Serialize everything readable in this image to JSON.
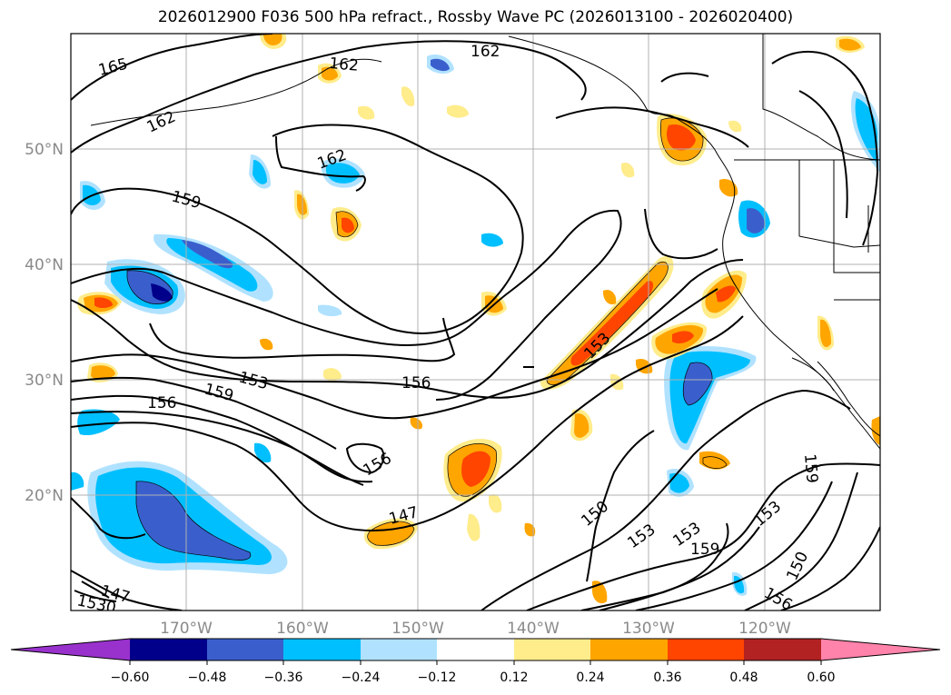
{
  "title": "2026012900 F036 500 hPa refract., Rossby Wave PC (2026013100 - 2026020400)",
  "map": {
    "lon_range": [
      -180,
      -110
    ],
    "lat_range": [
      10,
      60
    ],
    "lon_ticks": [
      "170°W",
      "160°W",
      "150°W",
      "140°W",
      "130°W",
      "120°W"
    ],
    "lat_ticks": [
      "50°N",
      "40°N",
      "30°N",
      "20°N"
    ],
    "grid": true
  },
  "contour_labels": [
    {
      "text": "165"
    },
    {
      "text": "162"
    },
    {
      "text": "162"
    },
    {
      "text": "162"
    },
    {
      "text": "162"
    },
    {
      "text": "159"
    },
    {
      "text": "159"
    },
    {
      "text": "153"
    },
    {
      "text": "156"
    },
    {
      "text": "156"
    },
    {
      "text": "156"
    },
    {
      "text": "153"
    },
    {
      "text": "147"
    },
    {
      "text": "147"
    },
    {
      "text": "1530"
    },
    {
      "text": "150"
    },
    {
      "text": "153"
    },
    {
      "text": "153"
    },
    {
      "text": "159"
    },
    {
      "text": "153"
    },
    {
      "text": "150"
    },
    {
      "text": "156"
    },
    {
      "text": "159"
    }
  ],
  "colorbar": {
    "levels": [
      "−0.60",
      "−0.48",
      "−0.36",
      "−0.24",
      "−0.12",
      "0.12",
      "0.24",
      "0.36",
      "0.48",
      "0.60"
    ],
    "colors": [
      "#9932cc",
      "#00008b",
      "#3a5fcd",
      "#00bfff",
      "#b0e2ff",
      "#ffffff",
      "#ffec8b",
      "#ffa500",
      "#ff4500",
      "#b22222",
      "#ff83aa"
    ]
  }
}
